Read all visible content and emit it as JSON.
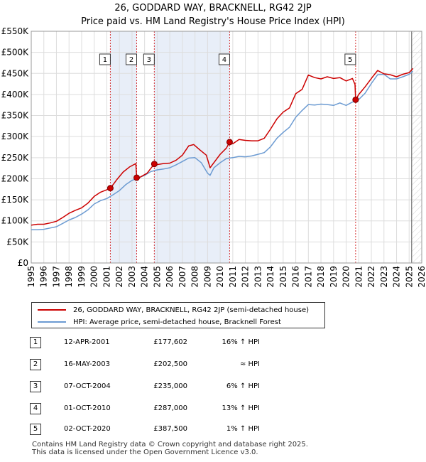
{
  "title_line1": "26, GODDARD WAY, BRACKNELL, RG42 2JP",
  "title_line2": "Price paid vs. HM Land Registry's House Price Index (HPI)",
  "colors": {
    "property": "#cc0000",
    "hpi": "#6c9bd2",
    "band": "#e8eef8",
    "grid": "#dddddd",
    "marker_line": "#cc0000"
  },
  "legend": {
    "property_label": "26, GODDARD WAY, BRACKNELL, RG42 2JP (semi-detached house)",
    "hpi_label": "HPI: Average price, semi-detached house, Bracknell Forest"
  },
  "sales": [
    {
      "num": "1",
      "date": "12-APR-2001",
      "price": "£177,602",
      "hpi": "16% ↑ HPI"
    },
    {
      "num": "2",
      "date": "16-MAY-2003",
      "price": "£202,500",
      "hpi": "≈ HPI"
    },
    {
      "num": "3",
      "date": "07-OCT-2004",
      "price": "£235,000",
      "hpi": "6% ↑ HPI"
    },
    {
      "num": "4",
      "date": "01-OCT-2010",
      "price": "£287,000",
      "hpi": "13% ↑ HPI"
    },
    {
      "num": "5",
      "date": "02-OCT-2020",
      "price": "£387,500",
      "hpi": "1% ↑ HPI"
    }
  ],
  "footer_line1": "Contains HM Land Registry data © Crown copyright and database right 2025.",
  "footer_line2": "This data is licensed under the Open Government Licence v3.0.",
  "chart_data": {
    "type": "line",
    "title": "26, GODDARD WAY, BRACKNELL, RG42 2JP — Price paid vs. HM Land Registry's House Price Index (HPI)",
    "xlabel": "",
    "ylabel": "",
    "xlim": [
      1995,
      2026
    ],
    "ylim": [
      0,
      550000
    ],
    "grid": true,
    "legend_position": "bottom-left",
    "x_ticks": [
      1995,
      1996,
      1997,
      1998,
      1999,
      2000,
      2001,
      2002,
      2003,
      2004,
      2005,
      2006,
      2007,
      2008,
      2009,
      2010,
      2011,
      2012,
      2013,
      2014,
      2015,
      2016,
      2017,
      2018,
      2019,
      2020,
      2021,
      2022,
      2023,
      2024,
      2025,
      2026
    ],
    "y_ticks": [
      0,
      50000,
      100000,
      150000,
      200000,
      250000,
      300000,
      350000,
      400000,
      450000,
      500000,
      550000
    ],
    "y_tick_labels": [
      "£0",
      "£50K",
      "£100K",
      "£150K",
      "£200K",
      "£250K",
      "£300K",
      "£350K",
      "£400K",
      "£450K",
      "£500K",
      "£550K"
    ],
    "projection_start": 2025.2,
    "sale_markers": [
      {
        "label": "1",
        "x": 2001.28,
        "y": 177602
      },
      {
        "label": "2",
        "x": 2003.37,
        "y": 202500
      },
      {
        "label": "3",
        "x": 2004.77,
        "y": 235000
      },
      {
        "label": "4",
        "x": 2010.75,
        "y": 287000
      },
      {
        "label": "5",
        "x": 2020.75,
        "y": 387500
      }
    ],
    "shaded_ranges": [
      [
        2001.28,
        2003.37
      ],
      [
        2004.77,
        2010.75
      ]
    ],
    "series": [
      {
        "name": "26, GODDARD WAY, BRACKNELL, RG42 2JP (semi-detached house)",
        "x": [
          1995.0,
          1995.5,
          1996.0,
          1996.5,
          1997.0,
          1997.5,
          1998.0,
          1998.5,
          1999.0,
          1999.5,
          2000.0,
          2000.5,
          2001.0,
          2001.28,
          2001.3,
          2001.8,
          2002.3,
          2002.8,
          2003.3,
          2003.37,
          2003.6,
          2004.2,
          2004.77,
          2004.9,
          2005.5,
          2006.0,
          2006.5,
          2007.0,
          2007.5,
          2007.9,
          2008.4,
          2008.9,
          2009.2,
          2009.6,
          2010.0,
          2010.5,
          2010.75,
          2011.0,
          2011.5,
          2012.0,
          2012.5,
          2013.0,
          2013.5,
          2014.0,
          2014.5,
          2015.0,
          2015.5,
          2016.0,
          2016.5,
          2017.0,
          2017.5,
          2018.0,
          2018.5,
          2019.0,
          2019.5,
          2020.0,
          2020.5,
          2020.7,
          2020.75,
          2021.0,
          2021.5,
          2022.0,
          2022.5,
          2023.0,
          2023.5,
          2024.0,
          2024.5,
          2025.0,
          2025.3
        ],
        "y": [
          90000,
          92000,
          92000,
          95000,
          99000,
          108000,
          118000,
          125000,
          131000,
          142000,
          158000,
          168000,
          174000,
          177602,
          178000,
          198000,
          216000,
          228000,
          236000,
          202500,
          203000,
          213000,
          235000,
          233000,
          236000,
          237000,
          244000,
          256000,
          278000,
          281000,
          268000,
          256000,
          226000,
          242000,
          258000,
          273000,
          287000,
          283000,
          293000,
          291000,
          290000,
          290000,
          296000,
          318000,
          342000,
          358000,
          368000,
          402000,
          412000,
          446000,
          440000,
          437000,
          442000,
          438000,
          440000,
          432000,
          438000,
          424000,
          387500,
          400000,
          418000,
          438000,
          457000,
          449000,
          447000,
          442000,
          448000,
          452000,
          462000
        ]
      },
      {
        "name": "HPI: Average price, semi-detached house, Bracknell Forest",
        "x": [
          1995.0,
          1995.5,
          1996.0,
          1996.5,
          1997.0,
          1997.5,
          1998.0,
          1998.5,
          1999.0,
          1999.5,
          2000.0,
          2000.5,
          2001.0,
          2001.5,
          2002.0,
          2002.5,
          2003.0,
          2003.5,
          2004.0,
          2004.5,
          2005.0,
          2005.5,
          2006.0,
          2006.5,
          2007.0,
          2007.5,
          2008.0,
          2008.5,
          2009.0,
          2009.2,
          2009.5,
          2010.0,
          2010.5,
          2011.0,
          2011.5,
          2012.0,
          2012.5,
          2013.0,
          2013.5,
          2014.0,
          2014.5,
          2015.0,
          2015.5,
          2016.0,
          2016.5,
          2017.0,
          2017.5,
          2018.0,
          2018.5,
          2019.0,
          2019.5,
          2020.0,
          2020.5,
          2021.0,
          2021.5,
          2022.0,
          2022.5,
          2023.0,
          2023.5,
          2024.0,
          2024.5,
          2025.0,
          2025.3
        ],
        "y": [
          79000,
          79000,
          80000,
          83000,
          86000,
          94000,
          102000,
          108000,
          116000,
          126000,
          140000,
          148000,
          153000,
          162000,
          172000,
          186000,
          196000,
          202000,
          208000,
          217000,
          221000,
          223000,
          226000,
          233000,
          241000,
          249000,
          250000,
          238000,
          213000,
          208000,
          226000,
          238000,
          248000,
          250000,
          253000,
          252000,
          254000,
          258000,
          262000,
          276000,
          296000,
          310000,
          322000,
          346000,
          362000,
          376000,
          375000,
          377000,
          376000,
          374000,
          380000,
          374000,
          382000,
          388000,
          403000,
          426000,
          447000,
          448000,
          437000,
          437000,
          442000,
          448000,
          455000
        ]
      }
    ]
  }
}
